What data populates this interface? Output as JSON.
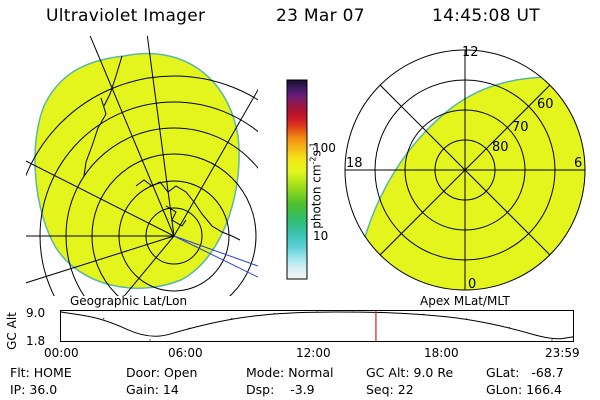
{
  "header": {
    "instrument": "Ultraviolet Imager",
    "date": "23 Mar 07",
    "time": "14:45:08 UT"
  },
  "colorbar": {
    "label": "photon cm",
    "label_sup1": "-2",
    "label_mid": "s",
    "label_sup2": "-1",
    "ticks": [
      "100",
      "10"
    ],
    "scale": "log"
  },
  "panels": {
    "left_caption": "Geographic Lat/Lon",
    "right_caption": "Apex MLat/MLT",
    "mlt_labels": [
      "12",
      "18",
      "6",
      "0"
    ],
    "mlat_labels": [
      "60",
      "70",
      "80"
    ]
  },
  "colors": {
    "aurora_fill": "#e3f51c",
    "aurora_edge": "#5ab6a8",
    "cursor": "#d61b1b",
    "grid": "#000000"
  },
  "chart_data": {
    "type": "line",
    "title": "",
    "xlabel": "",
    "ylabel": "GC Alt",
    "x": [
      "00:00",
      "02:00",
      "04:10",
      "06:00",
      "08:00",
      "10:00",
      "12:00",
      "13:40",
      "15:00",
      "17:00",
      "19:00",
      "21:00",
      "23:00",
      "23:59"
    ],
    "series": [
      {
        "values": [
          9.0,
          7.3,
          1.8,
          4.8,
          7.3,
          8.6,
          9.0,
          9.0,
          8.9,
          8.4,
          7.2,
          5.0,
          1.8,
          2.6
        ]
      }
    ],
    "ylim": [
      1.8,
      9.0
    ],
    "yticks": [
      "9.0",
      "1.8"
    ],
    "xticks": [
      "00:00",
      "06:00",
      "12:00",
      "18:00",
      "23:59"
    ],
    "cursor_time": "14:45:08"
  },
  "footer": {
    "flt": "Flt: HOME",
    "ip": "IP: 36.0",
    "door": "Door: Open",
    "gain": "Gain: 14",
    "mode": "Mode: Normal",
    "dsp": "Dsp:    -3.9",
    "gcalt": "GC Alt: 9.0 Re",
    "seq": "Seq: 22",
    "glat": "GLat:   -68.7",
    "glon": "GLon: 166.4"
  }
}
